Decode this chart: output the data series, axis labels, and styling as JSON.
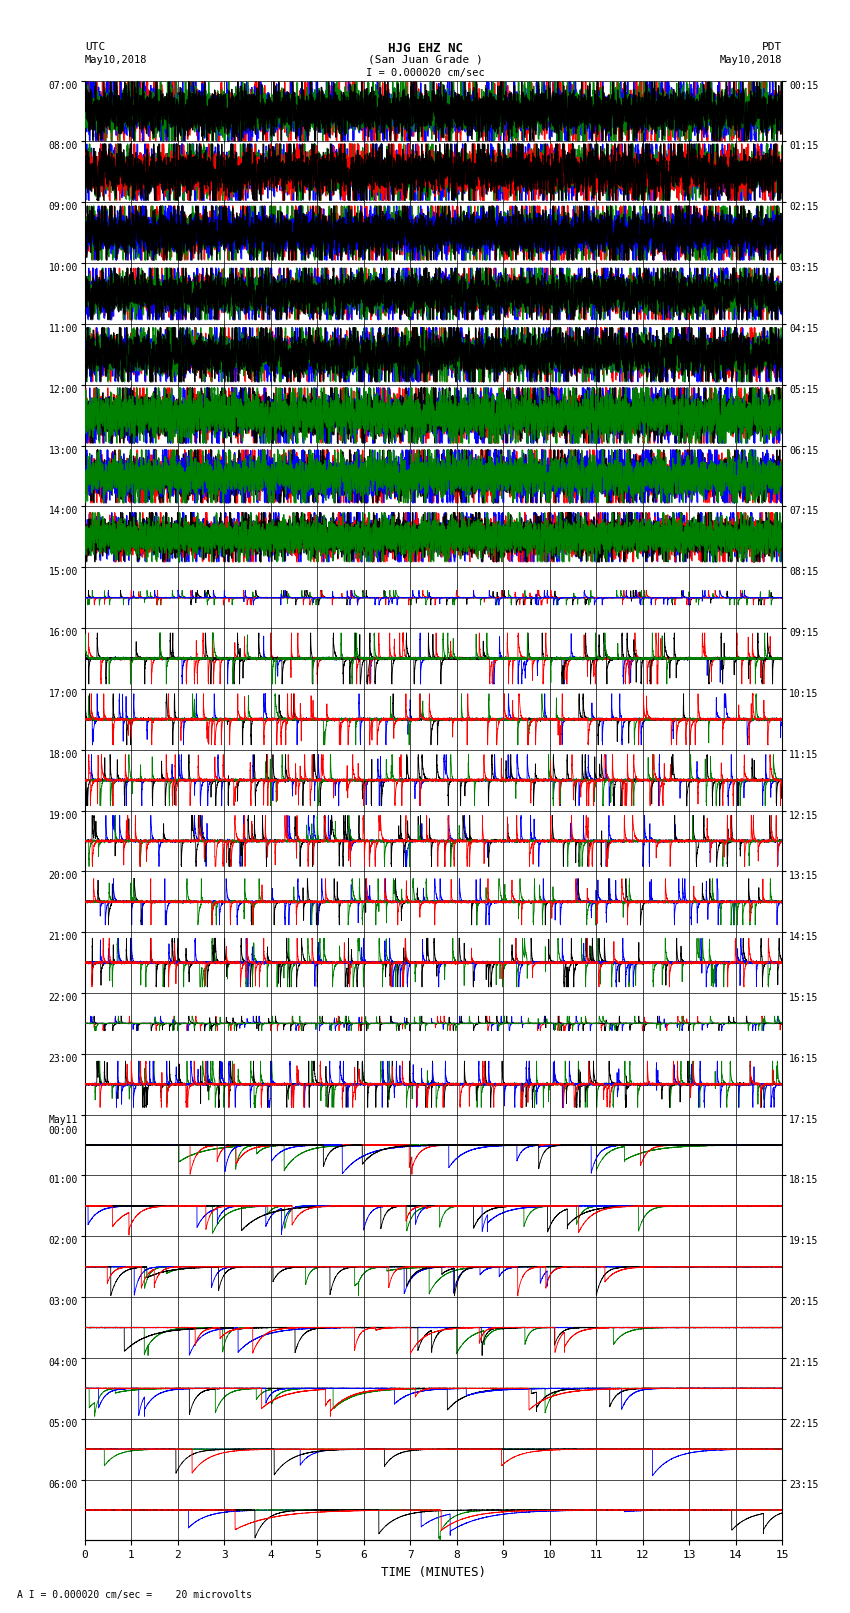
{
  "title_line1": "HJG EHZ NC",
  "title_line2": "(San Juan Grade )",
  "title_scale": "I = 0.000020 cm/sec",
  "label_left_top": "UTC",
  "label_left_date": "May10,2018",
  "label_right_top": "PDT",
  "label_right_date": "May10,2018",
  "xlabel": "TIME (MINUTES)",
  "footer": "A I = 0.000020 cm/sec =    20 microvolts",
  "xlim": [
    0,
    15
  ],
  "fig_width": 8.5,
  "fig_height": 16.13,
  "dpi": 100,
  "utc_labels": [
    "07:00",
    "08:00",
    "09:00",
    "10:00",
    "11:00",
    "12:00",
    "13:00",
    "14:00",
    "15:00",
    "16:00",
    "17:00",
    "18:00",
    "19:00",
    "20:00",
    "21:00",
    "22:00",
    "23:00",
    "May11\n00:00",
    "01:00",
    "02:00",
    "03:00",
    "04:00",
    "05:00",
    "06:00"
  ],
  "pdt_labels": [
    "00:15",
    "01:15",
    "02:15",
    "03:15",
    "04:15",
    "05:15",
    "06:15",
    "07:15",
    "08:15",
    "09:15",
    "10:15",
    "11:15",
    "12:15",
    "13:15",
    "14:15",
    "15:15",
    "16:15",
    "17:15",
    "18:15",
    "19:15",
    "20:15",
    "21:15",
    "22:15",
    "23:15"
  ],
  "n_rows": 24,
  "bg_color": "#ffffff",
  "grid_color": "#000000",
  "colors": {
    "red": "#ff0000",
    "blue": "#0000ff",
    "green": "#008000",
    "black": "#000000"
  },
  "xticks": [
    0,
    1,
    2,
    3,
    4,
    5,
    6,
    7,
    8,
    9,
    10,
    11,
    12,
    13,
    14,
    15
  ]
}
